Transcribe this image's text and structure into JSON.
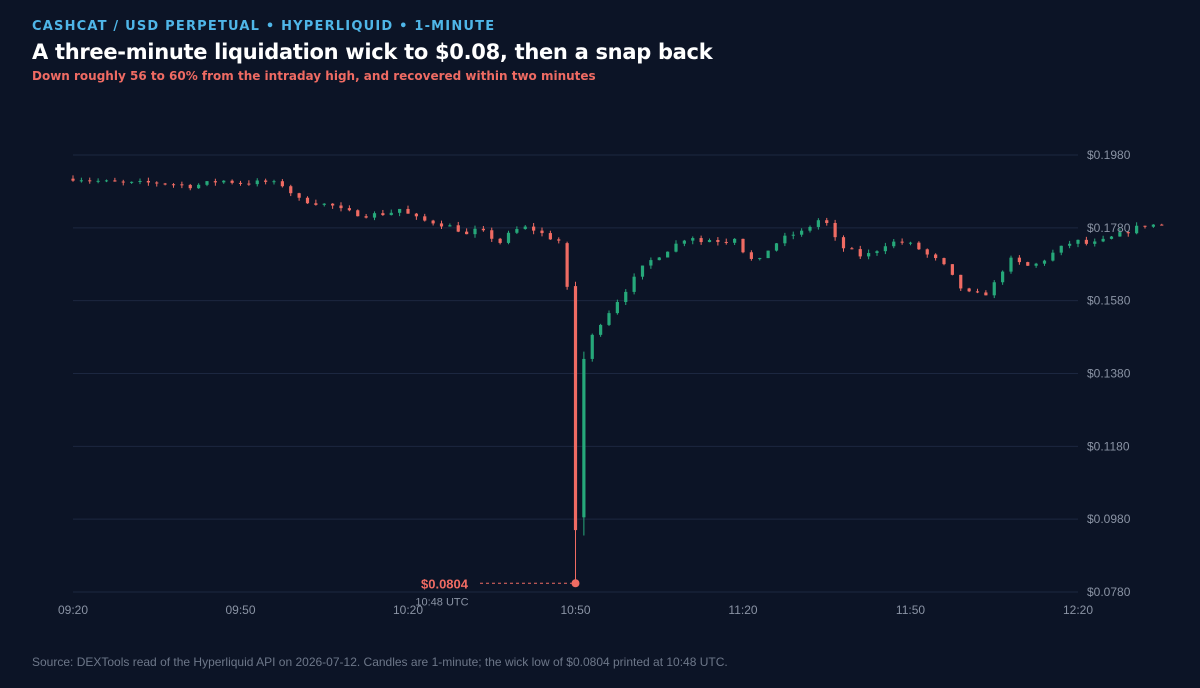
{
  "header": {
    "kicker": "CASHCAT / USD PERPETUAL • HYPERLIQUID • 1-MINUTE",
    "title": "A three-minute liquidation wick to $0.08, then a snap back",
    "subtitle": "Down roughly 56 to 60% from the intraday high, and recovered within two minutes"
  },
  "footer": {
    "source": "Source: DEXTools read of the Hyperliquid API on 2026-07-12. Candles are 1-minute; the wick low of $0.0804 printed at 10:48 UTC."
  },
  "colors": {
    "background": "#0c1426",
    "up": "#26a87a",
    "down": "#ef6b63",
    "grid": "#1c2740",
    "axis_text": "#8a93a4"
  },
  "chart_data": {
    "type": "candlestick",
    "title": "A three-minute liquidation wick to $0.08, then a snap back",
    "x_ticks": [
      "09:20",
      "09:50",
      "10:20",
      "10:50",
      "11:20",
      "11:50",
      "12:20"
    ],
    "y_ticks": [
      "$0.1980",
      "$0.1780",
      "$0.1580",
      "$0.1380",
      "$0.1180",
      "$0.0980",
      "$0.0780"
    ],
    "x_range_minutes": [
      0,
      180
    ],
    "y_range": [
      0.078,
      0.198
    ],
    "gridlines": "horizontal",
    "annotation": {
      "label": "$0.0804",
      "time_label": "10:48 UTC",
      "time": "10:48",
      "minute": 88,
      "value": 0.0804
    },
    "close_path": [
      [
        0,
        0.1915
      ],
      [
        2,
        0.1917
      ],
      [
        4,
        0.1912
      ],
      [
        8,
        0.1905
      ],
      [
        12,
        0.1902
      ],
      [
        16,
        0.1904
      ],
      [
        20,
        0.19
      ],
      [
        22,
        0.1894
      ],
      [
        24,
        0.1898
      ],
      [
        28,
        0.191
      ],
      [
        32,
        0.1903
      ],
      [
        36,
        0.1906
      ],
      [
        40,
        0.1895
      ],
      [
        41,
        0.186
      ],
      [
        44,
        0.1852
      ],
      [
        48,
        0.184
      ],
      [
        50,
        0.1825
      ],
      [
        54,
        0.1815
      ],
      [
        58,
        0.182
      ],
      [
        60,
        0.1832
      ],
      [
        62,
        0.1812
      ],
      [
        64,
        0.18
      ],
      [
        66,
        0.1796
      ],
      [
        70,
        0.178
      ],
      [
        72,
        0.176
      ],
      [
        74,
        0.1776
      ],
      [
        76,
        0.1758
      ],
      [
        78,
        0.174
      ],
      [
        80,
        0.1768
      ],
      [
        82,
        0.1782
      ],
      [
        84,
        0.1775
      ],
      [
        86,
        0.176
      ],
      [
        88,
        0.1745
      ],
      [
        89,
        0.1745
      ],
      [
        90,
        0.162
      ],
      [
        91,
        0.095
      ],
      [
        92,
        0.142
      ],
      [
        94,
        0.147
      ],
      [
        96,
        0.152
      ],
      [
        98,
        0.156
      ],
      [
        100,
        0.16
      ],
      [
        102,
        0.164
      ],
      [
        104,
        0.168
      ],
      [
        106,
        0.17
      ],
      [
        108,
        0.172
      ],
      [
        110,
        0.174
      ],
      [
        112,
        0.176
      ],
      [
        114,
        0.1742
      ],
      [
        116,
        0.175
      ],
      [
        118,
        0.174
      ],
      [
        120,
        0.1755
      ],
      [
        122,
        0.1705
      ],
      [
        124,
        0.168
      ],
      [
        126,
        0.172
      ],
      [
        128,
        0.1745
      ],
      [
        130,
        0.176
      ],
      [
        132,
        0.1768
      ],
      [
        134,
        0.179
      ],
      [
        136,
        0.1812
      ],
      [
        137,
        0.177
      ],
      [
        139,
        0.1728
      ],
      [
        141,
        0.1715
      ],
      [
        143,
        0.17
      ],
      [
        145,
        0.1715
      ],
      [
        147,
        0.1735
      ],
      [
        149,
        0.1742
      ],
      [
        151,
        0.1738
      ],
      [
        153,
        0.1722
      ],
      [
        155,
        0.17
      ],
      [
        157,
        0.1685
      ],
      [
        159,
        0.1645
      ],
      [
        161,
        0.1605
      ],
      [
        163,
        0.1595
      ],
      [
        165,
        0.16
      ],
      [
        167,
        0.1635
      ],
      [
        169,
        0.1695
      ],
      [
        171,
        0.1682
      ],
      [
        173,
        0.1672
      ],
      [
        175,
        0.1688
      ],
      [
        177,
        0.171
      ],
      [
        179,
        0.173
      ],
      [
        181,
        0.1745
      ],
      [
        183,
        0.1736
      ],
      [
        185,
        0.1738
      ],
      [
        187,
        0.175
      ],
      [
        189,
        0.1762
      ],
      [
        191,
        0.1774
      ],
      [
        193,
        0.1787
      ],
      [
        195,
        0.1788
      ]
    ]
  }
}
